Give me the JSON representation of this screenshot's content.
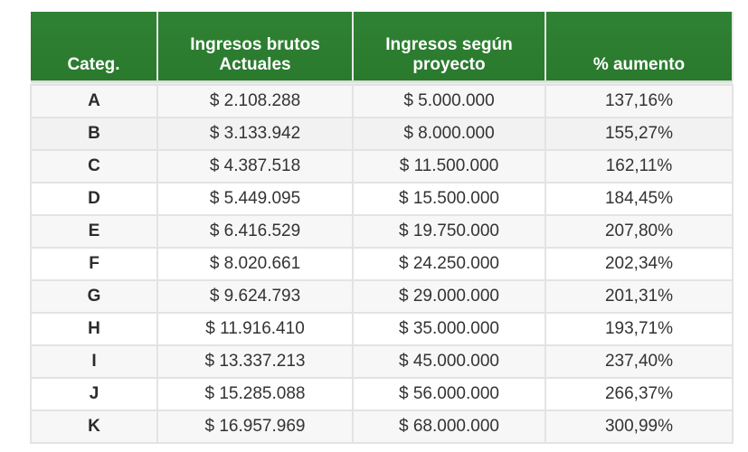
{
  "table": {
    "headers": {
      "category": "Categ.",
      "current_line1": "Ingresos brutos",
      "current_line2": "Actuales",
      "project_line1": "Ingresos según",
      "project_line2": "proyecto",
      "increase": "% aumento"
    },
    "rows": [
      {
        "category": "A",
        "current": "$ 2.108.288",
        "project": "$ 5.000.000",
        "increase": "137,16%"
      },
      {
        "category": "B",
        "current": "$ 3.133.942",
        "project": "$ 8.000.000",
        "increase": "155,27%"
      },
      {
        "category": "C",
        "current": "$ 4.387.518",
        "project": "$ 11.500.000",
        "increase": "162,11%"
      },
      {
        "category": "D",
        "current": "$ 5.449.095",
        "project": "$ 15.500.000",
        "increase": "184,45%"
      },
      {
        "category": "E",
        "current": "$ 6.416.529",
        "project": "$ 19.750.000",
        "increase": "207,80%"
      },
      {
        "category": "F",
        "current": "$ 8.020.661",
        "project": "$ 24.250.000",
        "increase": "202,34%"
      },
      {
        "category": "G",
        "current": "$ 9.624.793",
        "project": "$ 29.000.000",
        "increase": "201,31%"
      },
      {
        "category": "H",
        "current": "$ 11.916.410",
        "project": "$ 35.000.000",
        "increase": "193,71%"
      },
      {
        "category": "I",
        "current": "$ 13.337.213",
        "project": "$ 45.000.000",
        "increase": "237,40%"
      },
      {
        "category": "J",
        "current": "$ 15.285.088",
        "project": "$ 56.000.000",
        "increase": "266,37%"
      },
      {
        "category": "K",
        "current": "$ 16.957.969",
        "project": "$ 68.000.000",
        "increase": "300,99%"
      }
    ]
  },
  "colors": {
    "header_bg": "#2e7d32",
    "header_text": "#ffffff",
    "row_shade": "#f2f2f2",
    "border": "#e3e3e3"
  }
}
